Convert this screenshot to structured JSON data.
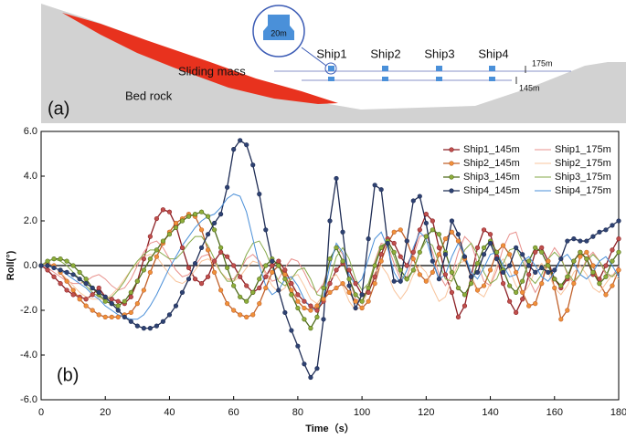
{
  "diagram": {
    "panel_label": "(a)",
    "ships": [
      "Ship1",
      "Ship2",
      "Ship3",
      "Ship4"
    ],
    "sliding_mass": "Sliding mass",
    "bed_rock": "Bed rock",
    "ship_width": "20m",
    "levels": [
      "175m",
      "145m"
    ]
  },
  "chart_data": {
    "type": "line",
    "x_label": "Time（s）",
    "y_label": "Roll(°)",
    "annotations": [
      "(b)"
    ],
    "xlim": [
      0,
      180
    ],
    "xticks": [
      0,
      20,
      40,
      60,
      80,
      100,
      120,
      140,
      160,
      180
    ],
    "ylim": [
      -6,
      6
    ],
    "yticks": [
      {
        "value": -6,
        "label": "-6.0"
      },
      {
        "value": -4,
        "label": "-4.0"
      },
      {
        "value": -2,
        "label": "-2.0"
      },
      {
        "value": 0,
        "label": "0.0"
      },
      {
        "value": 2,
        "label": "2.0"
      },
      {
        "value": 4,
        "label": "4.0"
      },
      {
        "value": 6,
        "label": "6.0"
      }
    ],
    "legend": "upper right",
    "x": [
      0,
      2,
      4,
      6,
      8,
      10,
      12,
      14,
      16,
      18,
      20,
      22,
      24,
      26,
      28,
      30,
      32,
      34,
      36,
      38,
      40,
      42,
      44,
      46,
      48,
      50,
      52,
      54,
      56,
      58,
      60,
      62,
      64,
      66,
      68,
      70,
      72,
      74,
      76,
      78,
      80,
      82,
      84,
      86,
      88,
      90,
      92,
      94,
      96,
      98,
      100,
      102,
      104,
      106,
      108,
      110,
      112,
      114,
      116,
      118,
      120,
      122,
      124,
      126,
      128,
      130,
      132,
      134,
      136,
      138,
      140,
      142,
      144,
      146,
      148,
      150,
      152,
      154,
      156,
      158,
      160,
      162,
      164,
      166,
      168,
      170,
      172,
      174,
      176,
      178,
      180
    ],
    "series": [
      {
        "name": "Ship1_145m",
        "color": "#8b1f24",
        "marker_color": "#c0504d",
        "markers": true,
        "values": [
          0,
          -0.2,
          -0.5,
          -0.8,
          -1.1,
          -1.3,
          -1.4,
          -1.5,
          -1.3,
          -1.0,
          -1.4,
          -1.5,
          -1.6,
          -1.7,
          -1.4,
          -0.7,
          0.3,
          1.3,
          2.1,
          2.5,
          2.4,
          1.8,
          0.8,
          -0.1,
          -0.6,
          -0.8,
          -0.5,
          0.2,
          0.6,
          0.4,
          0.0,
          -0.5,
          -0.9,
          -1.2,
          -1.0,
          -0.5,
          0.0,
          0.2,
          -0.2,
          -0.8,
          -1.3,
          -1.6,
          -1.8,
          -2.0,
          -1.6,
          -0.8,
          -0.2,
          0.1,
          -0.2,
          -0.8,
          -1.3,
          -1.2,
          -0.5,
          0.5,
          1.2,
          1.0,
          0.4,
          0.0,
          0.6,
          1.6,
          2.3,
          2.0,
          0.8,
          -0.4,
          -1.2,
          -2.3,
          -1.8,
          -0.5,
          0.8,
          1.6,
          1.4,
          0.4,
          -0.8,
          -1.6,
          -2.1,
          -1.5,
          -0.4,
          0.6,
          0.8,
          0.2,
          -0.6,
          -1.0,
          -0.6,
          0.2,
          0.6,
          0.3,
          -0.4,
          -0.6,
          0.0,
          0.7,
          1.2
        ]
      },
      {
        "name": "Ship1_175m",
        "color": "#e8908c",
        "markers": false,
        "values": [
          0,
          -0.1,
          -0.3,
          -0.5,
          -0.7,
          -0.8,
          -0.8,
          -0.7,
          -0.5,
          -0.4,
          -0.6,
          -0.9,
          -1.1,
          -1.0,
          -0.6,
          0.0,
          0.6,
          1.0,
          1.1,
          0.8,
          0.3,
          -0.2,
          -0.5,
          -0.4,
          0.0,
          0.4,
          0.5,
          0.2,
          -0.3,
          -0.6,
          -0.6,
          -0.2,
          0.3,
          0.5,
          0.2,
          -0.3,
          -0.7,
          -0.6,
          -0.1,
          0.3,
          0.2,
          -0.3,
          -0.9,
          -1.2,
          -0.8,
          0.2,
          0.9,
          0.5,
          -0.6,
          -1.5,
          -1.6,
          -0.9,
          0.2,
          1.0,
          0.9,
          0.1,
          -0.6,
          -0.5,
          0.4,
          1.3,
          1.4,
          0.6,
          -0.4,
          -0.9,
          -0.4,
          0.6,
          1.3,
          1.0,
          0.1,
          -0.7,
          -0.9,
          -0.2,
          0.8,
          1.4,
          1.5,
          0.6,
          -0.6,
          -1.2,
          -0.7,
          0.3,
          0.8,
          0.4,
          -0.4,
          -0.8,
          -0.4,
          0.3,
          0.6,
          0.2,
          -0.4,
          -0.5,
          0.0
        ]
      },
      {
        "name": "Ship2_145m",
        "color": "#c0602a",
        "marker_color": "#f0913a",
        "markers": true,
        "values": [
          0,
          0.1,
          0.0,
          -0.3,
          -0.7,
          -1.1,
          -1.5,
          -1.8,
          -2.0,
          -2.2,
          -2.3,
          -2.3,
          -2.3,
          -2.2,
          -2.1,
          -1.7,
          -1.1,
          -0.3,
          0.4,
          1.0,
          1.5,
          1.9,
          2.1,
          2.3,
          2.2,
          1.6,
          0.7,
          -0.3,
          -1.1,
          -1.7,
          -2.0,
          -2.2,
          -2.3,
          -2.2,
          -1.7,
          -1.0,
          -0.3,
          0.0,
          -0.4,
          -1.1,
          -1.6,
          -1.9,
          -2.0,
          -1.8,
          -1.5,
          -1.2,
          -1.0,
          -0.8,
          -1.2,
          -1.6,
          -1.9,
          -1.6,
          -0.8,
          0.2,
          1.0,
          1.5,
          1.6,
          1.1,
          0.3,
          -0.4,
          -0.7,
          -0.3,
          0.5,
          1.2,
          1.5,
          1.1,
          0.3,
          -0.5,
          -1.1,
          -0.9,
          -0.2,
          0.6,
          0.9,
          0.5,
          -0.3,
          -1.2,
          -1.8,
          -1.7,
          -0.8,
          0.2,
          -1.0,
          -2.4,
          -2.0,
          -0.8,
          0.4,
          0.6,
          0.0,
          -0.8,
          -1.3,
          -0.9,
          -0.2
        ]
      },
      {
        "name": "Ship2_175m",
        "color": "#f8c49c",
        "markers": false,
        "values": [
          0,
          0.1,
          0.0,
          -0.3,
          -0.6,
          -0.9,
          -1.2,
          -1.4,
          -1.5,
          -1.5,
          -1.5,
          -1.3,
          -1.0,
          -0.6,
          -0.2,
          0.1,
          0.4,
          0.5,
          0.4,
          0.0,
          -0.4,
          -0.7,
          -0.8,
          -0.6,
          -0.2,
          0.2,
          0.3,
          0.1,
          -0.3,
          -0.6,
          -0.7,
          -0.5,
          -0.1,
          0.2,
          0.1,
          -0.4,
          -0.9,
          -1.2,
          -1.0,
          -0.5,
          -0.4,
          -0.9,
          -1.5,
          -1.7,
          -1.3,
          -0.6,
          -0.4,
          -0.9,
          -1.6,
          -2.0,
          -1.8,
          -1.1,
          -0.3,
          0.0,
          -0.4,
          -1.1,
          -1.5,
          -1.1,
          -0.4,
          0.0,
          -0.3,
          -1.0,
          -1.6,
          -1.4,
          -0.6,
          0.1,
          0.2,
          -0.5,
          -1.2,
          -1.4,
          -0.8,
          0.0,
          0.3,
          -0.2,
          -0.9,
          -1.3,
          -0.9,
          -0.2,
          0.1,
          -0.3,
          -1.0,
          -1.3,
          -0.9,
          -0.3,
          0.0,
          -0.4,
          -1.0,
          -1.2,
          -0.8,
          -0.4,
          -0.6
        ]
      },
      {
        "name": "Ship3_145m",
        "color": "#4f6b1c",
        "marker_color": "#8fae3b",
        "markers": true,
        "values": [
          0,
          0.2,
          0.3,
          0.3,
          0.2,
          0.0,
          -0.3,
          -0.6,
          -1.0,
          -1.3,
          -1.6,
          -1.7,
          -1.8,
          -1.6,
          -1.2,
          -0.7,
          -0.2,
          0.3,
          0.7,
          1.1,
          1.4,
          1.7,
          2.0,
          2.2,
          2.3,
          2.4,
          2.2,
          1.6,
          0.8,
          -0.1,
          -0.9,
          -1.4,
          -1.6,
          -1.2,
          -0.6,
          0.0,
          0.3,
          0.0,
          -0.6,
          -1.3,
          -1.9,
          -2.4,
          -2.8,
          -2.3,
          -1.0,
          0.3,
          0.8,
          0.2,
          -0.6,
          -1.3,
          -1.6,
          -1.0,
          0.0,
          0.8,
          1.1,
          0.6,
          -0.2,
          -0.6,
          -0.2,
          0.6,
          1.3,
          1.6,
          1.4,
          0.6,
          -0.3,
          -1.0,
          -1.3,
          -0.8,
          0.1,
          0.8,
          1.1,
          0.6,
          -0.2,
          -0.9,
          -1.2,
          -0.7,
          0.2,
          0.8,
          0.6,
          0.0,
          -0.6,
          -0.9,
          -0.5,
          0.2,
          0.6,
          0.3,
          -0.3,
          -0.8,
          -0.5,
          0.2,
          0.6
        ]
      },
      {
        "name": "Ship3_175m",
        "color": "#86a94a",
        "markers": false,
        "values": [
          0,
          0.2,
          0.3,
          0.2,
          0.0,
          -0.3,
          -0.6,
          -0.9,
          -1.2,
          -1.4,
          -1.5,
          -1.4,
          -1.1,
          -0.7,
          -0.2,
          0.2,
          0.5,
          0.7,
          0.7,
          0.5,
          0.3,
          0.3,
          0.6,
          1.0,
          1.3,
          1.3,
          0.9,
          0.3,
          -0.3,
          -0.7,
          -0.7,
          -0.2,
          0.5,
          1.0,
          1.1,
          0.6,
          -0.1,
          -0.7,
          -0.9,
          -0.6,
          -0.2,
          -0.1,
          -0.6,
          -1.3,
          -1.4,
          -0.6,
          0.4,
          0.8,
          0.3,
          -0.6,
          -1.1,
          -0.8,
          0.1,
          0.9,
          1.0,
          0.4,
          -0.4,
          -0.7,
          -0.2,
          0.6,
          1.1,
          0.9,
          0.1,
          -0.6,
          -0.7,
          -0.1,
          0.7,
          1.0,
          0.5,
          -0.3,
          -0.8,
          -0.6,
          0.1,
          0.7,
          0.8,
          0.2,
          -0.5,
          -0.8,
          -0.4,
          0.3,
          0.6,
          0.3,
          -0.3,
          -0.7,
          -0.4,
          0.2,
          0.5,
          0.2,
          -0.3,
          -0.5,
          -0.2
        ]
      },
      {
        "name": "Ship4_145m",
        "color": "#1f2d55",
        "marker_color": "#2e4272",
        "markers": true,
        "values": [
          0,
          0,
          -0.1,
          -0.2,
          -0.3,
          -0.4,
          -0.6,
          -0.8,
          -1.0,
          -1.2,
          -1.4,
          -1.7,
          -2.0,
          -2.3,
          -2.5,
          -2.7,
          -2.8,
          -2.8,
          -2.7,
          -2.5,
          -2.2,
          -1.8,
          -1.2,
          -0.6,
          0.1,
          0.8,
          1.4,
          1.9,
          2.3,
          3.5,
          5.2,
          5.6,
          5.4,
          4.5,
          3.2,
          1.6,
          0.2,
          -1.1,
          -2.1,
          -2.9,
          -3.6,
          -4.4,
          -5.0,
          -4.6,
          -2.4,
          2.0,
          3.9,
          1.5,
          -0.9,
          -1.9,
          -1.3,
          1.2,
          3.6,
          3.4,
          1.0,
          -0.7,
          -0.7,
          1.1,
          2.9,
          3.1,
          1.9,
          0.2,
          -0.6,
          0.5,
          2.0,
          1.4,
          0.4,
          -0.5,
          -0.3,
          0.5,
          1.0,
          0.3,
          -0.3,
          0.0,
          0.8,
          0.5,
          0.0,
          -0.3,
          -0.1,
          -0.3,
          -0.2,
          0.3,
          1.1,
          1.2,
          1.1,
          1.1,
          1.3,
          1.5,
          1.6,
          1.8,
          2.0
        ]
      },
      {
        "name": "Ship4_175m",
        "color": "#4a8fd8",
        "markers": false,
        "values": [
          0,
          0.0,
          -0.1,
          -0.2,
          -0.4,
          -0.6,
          -0.8,
          -1.0,
          -1.3,
          -1.5,
          -1.8,
          -2.0,
          -2.2,
          -2.3,
          -2.4,
          -2.4,
          -2.2,
          -1.8,
          -1.3,
          -0.7,
          -0.1,
          0.4,
          0.9,
          1.3,
          1.7,
          2.0,
          2.2,
          2.3,
          2.6,
          3.0,
          3.2,
          3.1,
          2.4,
          1.2,
          0.0,
          -0.9,
          -1.3,
          -1.1,
          -0.6,
          -0.5,
          -0.9,
          -1.5,
          -1.9,
          -2.0,
          -1.4,
          0.0,
          1.0,
          0.6,
          -0.4,
          -0.9,
          -0.6,
          0.3,
          1.2,
          1.5,
          0.8,
          -0.3,
          -0.8,
          -0.2,
          0.8,
          1.5,
          1.2,
          0.2,
          -0.6,
          -0.4,
          0.4,
          1.0,
          0.5,
          -0.3,
          -0.6,
          -0.1,
          0.5,
          0.6,
          0.0,
          -0.5,
          -0.4,
          0.2,
          0.4,
          0.0,
          -0.5,
          -0.7,
          -0.3,
          0.3,
          0.5,
          0.1,
          -0.4,
          -0.6,
          -0.3,
          0.2,
          0.4,
          0.0,
          -0.5
        ]
      }
    ]
  }
}
